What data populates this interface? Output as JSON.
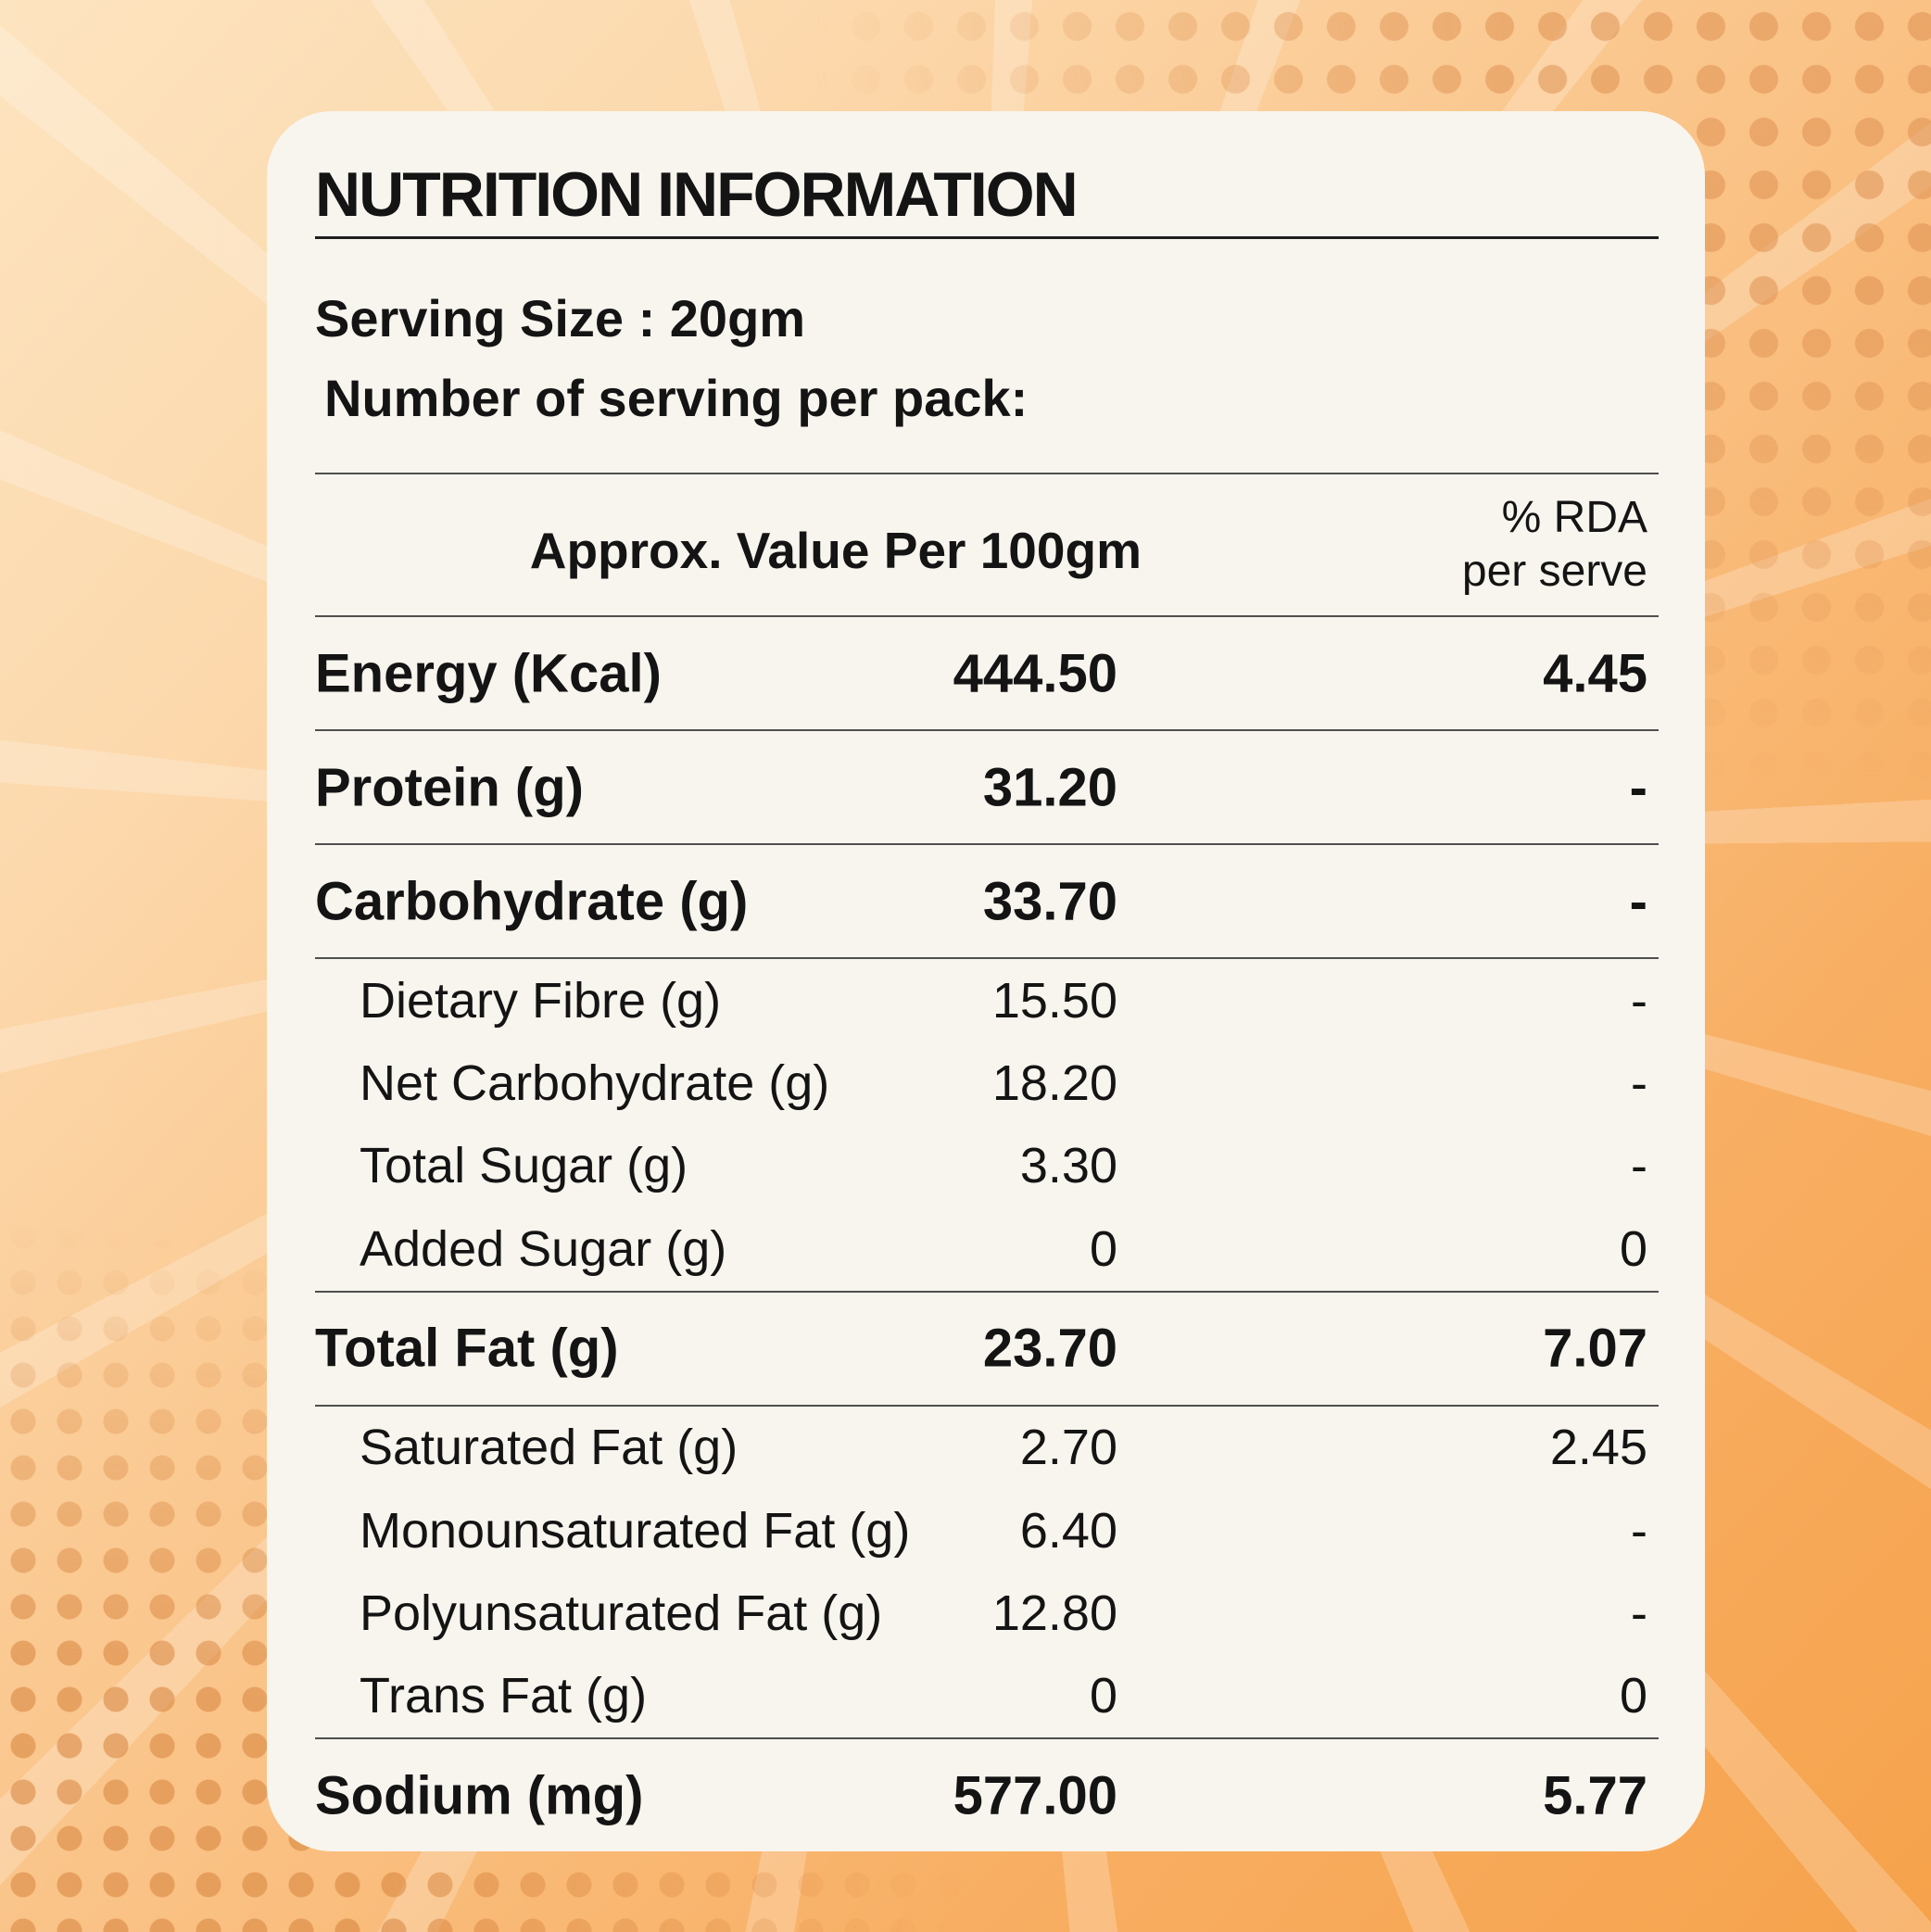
{
  "colors": {
    "background_top_left": "#fde4c0",
    "background_bottom_right": "#f6a24b",
    "halftone_dot": "#de9252",
    "ray_highlight": "rgba(255,255,255,0.22)",
    "card_background": "#f8f5ee",
    "text": "#141414",
    "rule": "#4f4f4f"
  },
  "header": {
    "title": "NUTRITION INFORMATION",
    "serving_size": "Serving Size : 20gm",
    "servings_per_pack": "Number of serving per pack:"
  },
  "table": {
    "value_column_header": "Approx. Value Per 100gm",
    "rda_column_header_line1": "% RDA",
    "rda_column_header_line2": "per serve",
    "rows": [
      {
        "kind": "main",
        "label": "Energy (Kcal)",
        "value": "444.50",
        "rda": "4.45"
      },
      {
        "kind": "main",
        "label": "Protein (g)",
        "value": "31.20",
        "rda": "-"
      },
      {
        "kind": "main",
        "label": "Carbohydrate (g)",
        "value": "33.70",
        "rda": "-"
      },
      {
        "kind": "sub-group",
        "items": [
          {
            "label": "Dietary Fibre (g)",
            "value": "15.50",
            "rda": "-"
          },
          {
            "label": "Net Carbohydrate (g)",
            "value": "18.20",
            "rda": "-"
          },
          {
            "label": "Total Sugar (g)",
            "value": "3.30",
            "rda": "-"
          },
          {
            "label": "Added Sugar (g)",
            "value": "0",
            "rda": "0"
          }
        ]
      },
      {
        "kind": "main",
        "label": "Total Fat (g)",
        "value": "23.70",
        "rda": "7.07"
      },
      {
        "kind": "sub-group",
        "items": [
          {
            "label": "Saturated Fat (g)",
            "value": "2.70",
            "rda": "2.45"
          },
          {
            "label": "Monounsaturated Fat (g)",
            "value": "6.40",
            "rda": "-"
          },
          {
            "label": "Polyunsaturated Fat (g)",
            "value": "12.80",
            "rda": "-"
          },
          {
            "label": "Trans Fat (g)",
            "value": "0",
            "rda": "0"
          }
        ]
      },
      {
        "kind": "main",
        "label": "Sodium (mg)",
        "value": "577.00",
        "rda": "5.77"
      }
    ]
  }
}
